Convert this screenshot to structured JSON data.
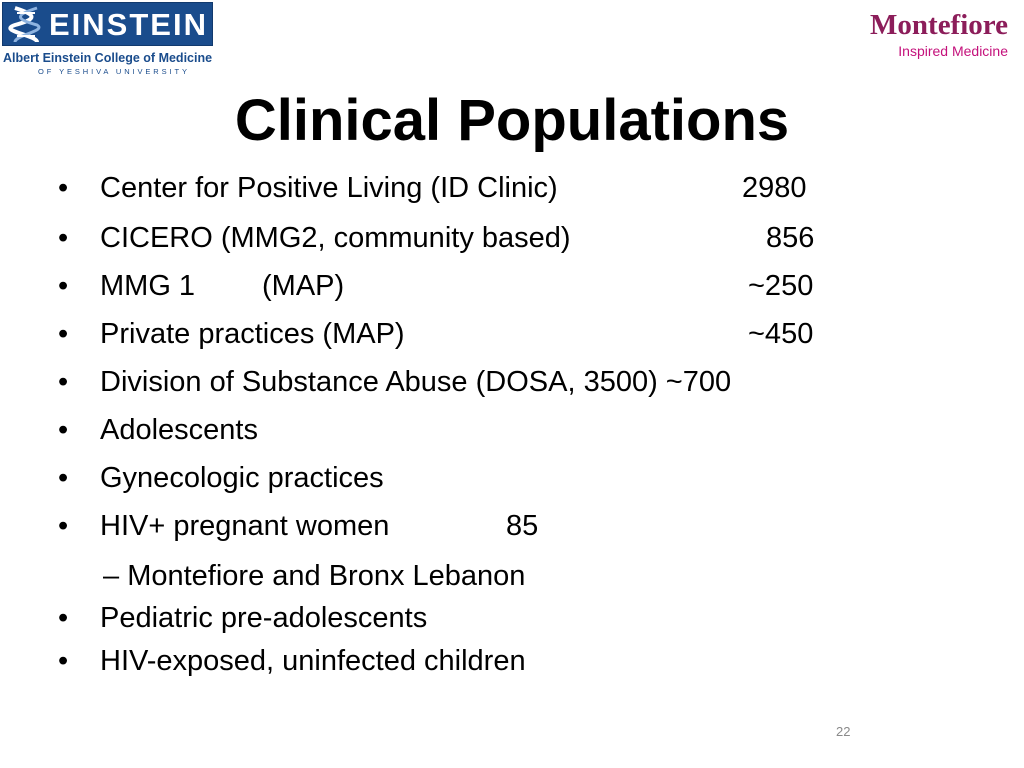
{
  "logos": {
    "einstein": {
      "word": "EINSTEIN",
      "college": "Albert Einstein College of Medicine",
      "university": "OF YESHIVA UNIVERSITY",
      "banner_color": "#1a4c8c"
    },
    "montefiore": {
      "word": "Montefiore",
      "tagline": "Inspired Medicine",
      "color": "#8c1d5a",
      "tag_color": "#c4117b"
    }
  },
  "slide": {
    "title": "Clinical Populations",
    "bullet_glyph": "•",
    "sub_glyph": "–",
    "items": [
      {
        "text": "Center for Positive Living (ID Clinic)",
        "value": "2980"
      },
      {
        "text": "CICERO (MMG2, community based)",
        "value": "856"
      },
      {
        "text": "MMG 1",
        "text2": "(MAP)",
        "value": "~250"
      },
      {
        "text": "Private practices (MAP)",
        "value": "~450"
      },
      {
        "text": "Division of Substance Abuse (DOSA, 3500) ~700"
      },
      {
        "text": "Adolescents"
      },
      {
        "text": "Gynecologic practices"
      },
      {
        "text": "HIV+ pregnant women",
        "value": "85"
      },
      {
        "text": "Pediatric pre-adolescents"
      },
      {
        "text": "HIV-exposed, uninfected children"
      }
    ],
    "sub_item": "Montefiore and Bronx Lebanon",
    "page_number": "22"
  }
}
